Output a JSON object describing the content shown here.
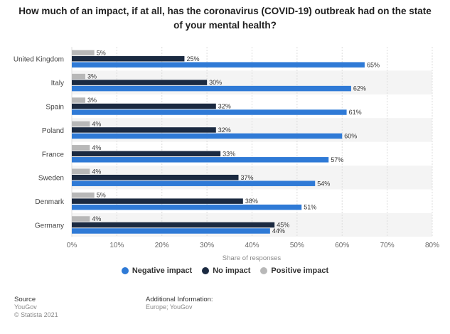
{
  "chart_data": {
    "type": "bar",
    "orientation": "horizontal",
    "title": "How much of an impact, if at all, has the coronavirus (COVID-19) outbreak had on the state of your mental health?",
    "xlabel": "Share of responses",
    "ylabel": "",
    "xlim": [
      0,
      80
    ],
    "ticks": [
      "0%",
      "10%",
      "20%",
      "30%",
      "40%",
      "50%",
      "60%",
      "70%",
      "80%"
    ],
    "grid": true,
    "legend_position": "bottom",
    "categories": [
      "United Kingdom",
      "Italy",
      "Spain",
      "Poland",
      "France",
      "Sweden",
      "Denmark",
      "Germany"
    ],
    "series": [
      {
        "name": "Positive impact",
        "color": "#b8b8b8",
        "values": [
          5,
          3,
          3,
          4,
          4,
          4,
          5,
          4
        ]
      },
      {
        "name": "No impact",
        "color": "#1b2a41",
        "values": [
          25,
          30,
          32,
          32,
          33,
          37,
          38,
          45
        ]
      },
      {
        "name": "Negative impact",
        "color": "#2f7ad6",
        "values": [
          65,
          62,
          61,
          60,
          57,
          54,
          51,
          44
        ]
      }
    ],
    "legend_order": [
      "Negative impact",
      "No impact",
      "Positive impact"
    ]
  },
  "footer": {
    "source_label": "Source",
    "source_name": "YouGov",
    "copyright": "© Statista 2021",
    "additional_label": "Additional Information:",
    "additional_text": "Europe; YouGov"
  }
}
